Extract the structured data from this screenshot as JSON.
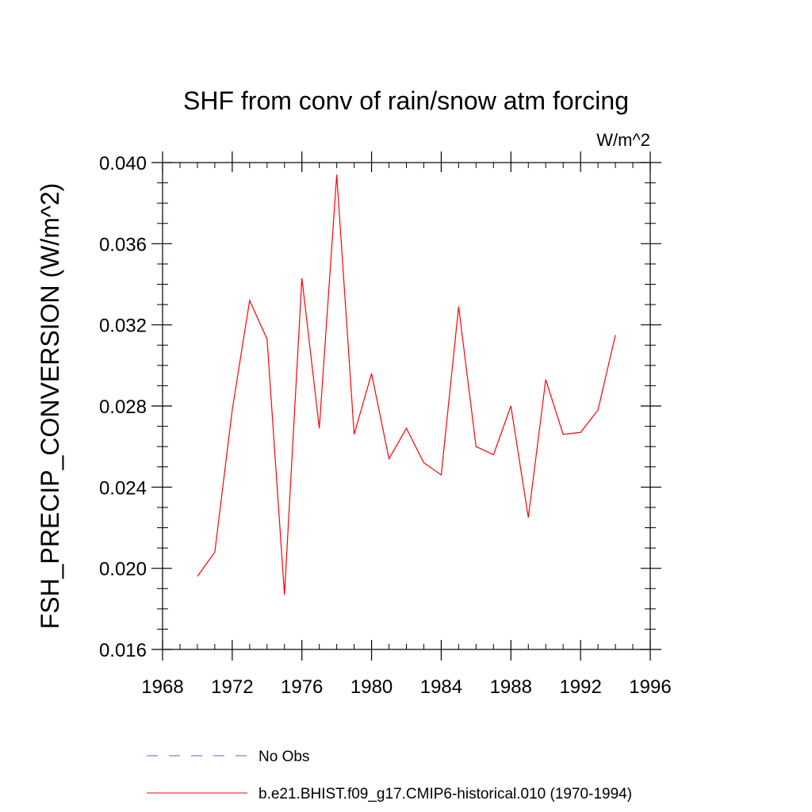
{
  "chart_data": {
    "type": "line",
    "title": "SHF from conv of rain/snow atm forcing",
    "units_label": "W/m^2",
    "xlabel": "",
    "ylabel": "FSH_PRECIP_CONVERSION  (W/m^2)",
    "xlim": [
      1968,
      1996
    ],
    "ylim": [
      0.016,
      0.04
    ],
    "x_ticks": [
      1968,
      1972,
      1976,
      1980,
      1984,
      1988,
      1992,
      1996
    ],
    "x_tick_labels": [
      "1968",
      "1972",
      "1976",
      "1980",
      "1984",
      "1988",
      "1992",
      "1996"
    ],
    "y_ticks": [
      0.016,
      0.02,
      0.024,
      0.028,
      0.032,
      0.036,
      0.04
    ],
    "y_tick_labels": [
      "0.016",
      "0.020",
      "0.024",
      "0.028",
      "0.032",
      "0.036",
      "0.040"
    ],
    "grid": false,
    "legend_position": "bottom",
    "series": [
      {
        "name": "No Obs",
        "color": "#6a5acd",
        "style": "dashed",
        "x": [],
        "values": []
      },
      {
        "name": "b.e21.BHIST.f09_g17.CMIP6-historical.010 (1970-1994)",
        "color": "#ff0000",
        "style": "solid",
        "x": [
          1970,
          1971,
          1972,
          1973,
          1974,
          1975,
          1976,
          1977,
          1978,
          1979,
          1980,
          1981,
          1982,
          1983,
          1984,
          1985,
          1986,
          1987,
          1988,
          1989,
          1990,
          1991,
          1992,
          1993,
          1994
        ],
        "values": [
          0.0196,
          0.0208,
          0.0278,
          0.0332,
          0.0313,
          0.0187,
          0.0343,
          0.0269,
          0.0394,
          0.0266,
          0.0296,
          0.0254,
          0.0269,
          0.0252,
          0.0246,
          0.0329,
          0.026,
          0.0256,
          0.028,
          0.0225,
          0.0293,
          0.0266,
          0.0267,
          0.0278,
          0.0315
        ]
      }
    ]
  }
}
